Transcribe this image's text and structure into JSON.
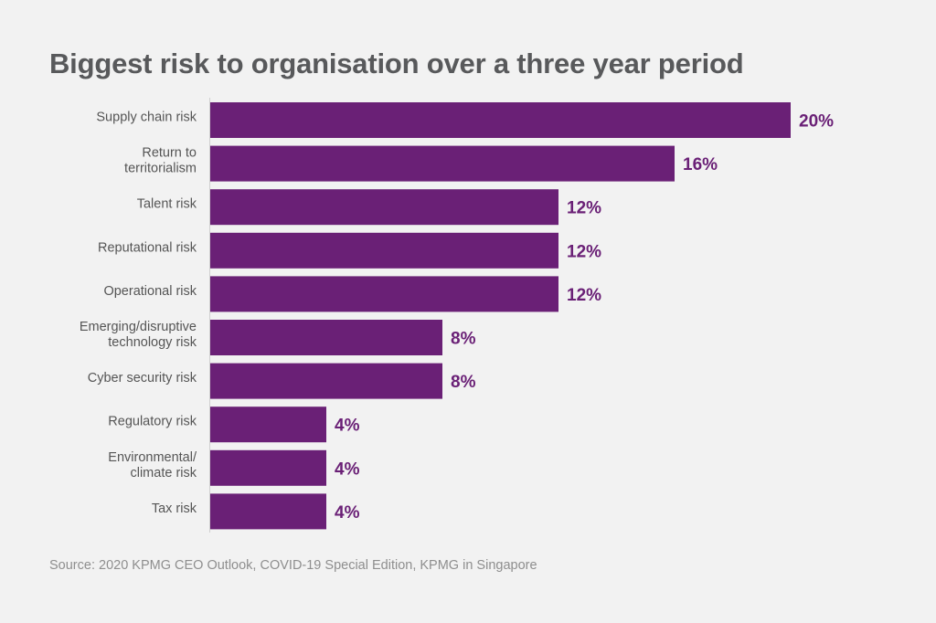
{
  "chart_data": {
    "type": "bar",
    "orientation": "horizontal",
    "title": "Biggest risk to organisation over a three year period",
    "categories": [
      "Supply chain risk",
      "Return to\nterritorialism",
      "Talent risk",
      "Reputational risk",
      "Operational risk",
      "Emerging/disruptive\ntechnology risk",
      "Cyber security risk",
      "Regulatory risk",
      "Environmental/\nclimate risk",
      "Tax risk"
    ],
    "values": [
      20,
      16,
      12,
      12,
      12,
      8,
      8,
      4,
      4,
      4
    ],
    "value_labels": [
      "20%",
      "16%",
      "12%",
      "12%",
      "12%",
      "8%",
      "8%",
      "4%",
      "4%",
      "4%"
    ],
    "xlabel": "",
    "ylabel": "",
    "xlim": [
      0,
      20
    ],
    "grid": false,
    "bar_color": "#6a2076",
    "label_color": "#6a2076"
  },
  "source": "Source: 2020 KPMG CEO Outlook, COVID-19 Special Edition, KPMG in Singapore"
}
